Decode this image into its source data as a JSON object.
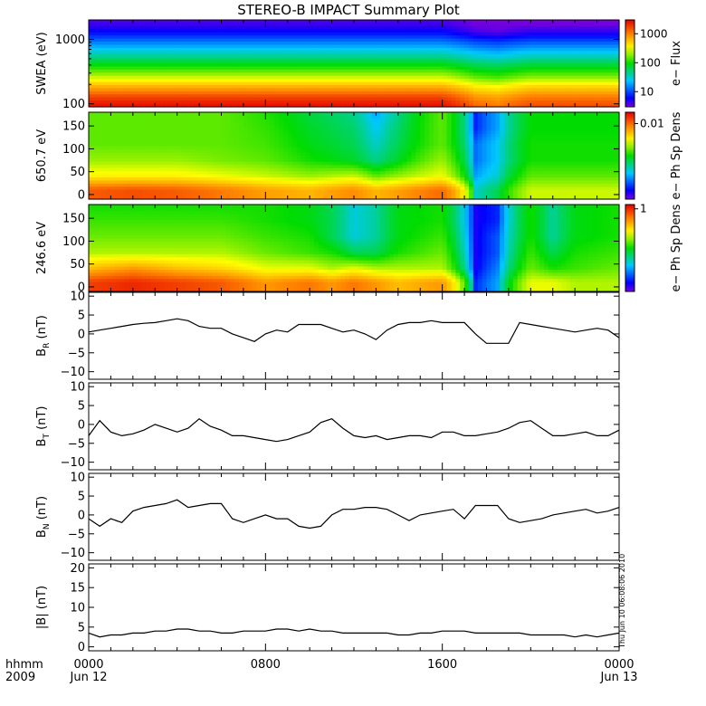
{
  "title": "STEREO-B IMPACT Summary Plot",
  "time_axis": {
    "row_label_1": "hhmm",
    "row_label_2": "2009",
    "ticks": [
      {
        "hour": 0,
        "label": "0000",
        "date": "Jun 12"
      },
      {
        "hour": 8,
        "label": "0800",
        "date": ""
      },
      {
        "hour": 16,
        "label": "1600",
        "date": ""
      },
      {
        "hour": 24,
        "label": "0000",
        "date": "Jun 13"
      }
    ]
  },
  "timestamp": "Thu Jun 10 06:08:06 2010",
  "colors": {
    "axis": "#000000",
    "trace": "#000000"
  },
  "chart_data": [
    {
      "type": "heatmap",
      "ylabel": "SWEA (eV)",
      "y_scale": "log",
      "ylim": [
        90,
        2000
      ],
      "yticks": [
        {
          "v": 100,
          "label": "100"
        },
        {
          "v": 1000,
          "label": "1000"
        }
      ],
      "colorbar": {
        "label": "e− Flux",
        "scale": "log",
        "range": [
          3,
          3000
        ],
        "ticks": [
          {
            "v": 10,
            "label": "10"
          },
          {
            "v": 100,
            "label": "100"
          },
          {
            "v": 1000,
            "label": "1000"
          }
        ]
      },
      "x": [
        0,
        2,
        4,
        6,
        8,
        10,
        12,
        14,
        16,
        17.5,
        18.5,
        20,
        22,
        24
      ],
      "y": [
        100,
        130,
        180,
        260,
        400,
        600,
        900,
        1300,
        1800
      ],
      "z": [
        [
          2500,
          2500,
          2500,
          2500,
          2500,
          2500,
          2500,
          2500,
          2500,
          1200,
          1000,
          1500,
          1500,
          1500
        ],
        [
          1600,
          1600,
          1600,
          1600,
          1600,
          1600,
          1600,
          1600,
          1600,
          800,
          700,
          1000,
          1000,
          1000
        ],
        [
          700,
          700,
          700,
          700,
          700,
          700,
          700,
          700,
          700,
          400,
          350,
          500,
          500,
          500
        ],
        [
          250,
          250,
          250,
          250,
          250,
          250,
          250,
          250,
          250,
          150,
          130,
          180,
          180,
          180
        ],
        [
          90,
          90,
          90,
          90,
          90,
          90,
          90,
          90,
          90,
          60,
          55,
          70,
          70,
          70
        ],
        [
          35,
          35,
          35,
          35,
          35,
          35,
          35,
          35,
          35,
          25,
          22,
          28,
          28,
          28
        ],
        [
          14,
          14,
          14,
          14,
          14,
          14,
          14,
          14,
          14,
          10,
          9,
          11,
          11,
          11
        ],
        [
          6,
          6,
          6,
          6,
          6,
          6,
          6,
          6,
          6,
          4,
          3.5,
          4.5,
          4.5,
          4.5
        ],
        [
          4,
          4,
          4,
          4,
          4,
          4,
          4,
          4,
          4,
          3,
          3,
          3,
          3,
          3
        ]
      ]
    },
    {
      "type": "heatmap",
      "ylabel": "650.7 eV",
      "ylim": [
        -10,
        180
      ],
      "yticks": [
        {
          "v": 0,
          "label": "0"
        },
        {
          "v": 50,
          "label": "50"
        },
        {
          "v": 100,
          "label": "100"
        },
        {
          "v": 150,
          "label": "150"
        }
      ],
      "colorbar": {
        "label": "e− Ph Sp Dens",
        "scale": "log",
        "range": [
          0.0001,
          0.02
        ],
        "ticks": [
          {
            "v": 0.01,
            "label": "0.01"
          }
        ]
      },
      "x": [
        0,
        2,
        4,
        6,
        8,
        10,
        12,
        13,
        14,
        16,
        17.5,
        18.5,
        20,
        22,
        24
      ],
      "y": [
        10,
        40,
        75,
        110,
        145,
        175
      ],
      "z": [
        [
          0.011,
          0.012,
          0.011,
          0.009,
          0.007,
          0.006,
          0.008,
          0.006,
          0.007,
          0.01,
          0.0006,
          0.001,
          0.003,
          0.003,
          0.003
        ],
        [
          0.004,
          0.004,
          0.004,
          0.0035,
          0.003,
          0.0025,
          0.003,
          0.002,
          0.0025,
          0.0035,
          0.0004,
          0.0006,
          0.002,
          0.002,
          0.002
        ],
        [
          0.0025,
          0.0025,
          0.0025,
          0.0022,
          0.002,
          0.0015,
          0.0012,
          0.0008,
          0.0012,
          0.0025,
          0.0003,
          0.0005,
          0.0015,
          0.0015,
          0.0015
        ],
        [
          0.002,
          0.002,
          0.002,
          0.002,
          0.0018,
          0.0013,
          0.001,
          0.0006,
          0.001,
          0.002,
          0.0003,
          0.0005,
          0.0015,
          0.0015,
          0.0015
        ],
        [
          0.002,
          0.002,
          0.002,
          0.002,
          0.0017,
          0.0012,
          0.0009,
          0.0005,
          0.0009,
          0.002,
          0.0002,
          0.0004,
          0.0014,
          0.0014,
          0.0014
        ],
        [
          0.002,
          0.002,
          0.002,
          0.002,
          0.0016,
          0.0011,
          0.0008,
          0.0004,
          0.0008,
          0.002,
          0.0002,
          0.0004,
          0.0014,
          0.0014,
          0.0014
        ]
      ]
    },
    {
      "type": "heatmap",
      "ylabel": "246.6 eV",
      "ylim": [
        -10,
        180
      ],
      "yticks": [
        {
          "v": 0,
          "label": "0"
        },
        {
          "v": 50,
          "label": "50"
        },
        {
          "v": 100,
          "label": "100"
        },
        {
          "v": 150,
          "label": "150"
        }
      ],
      "colorbar": {
        "label": "e− Ph Sp Dens",
        "scale": "log",
        "range": [
          0.03,
          1.2
        ],
        "ticks": [
          {
            "v": 1,
            "label": "1"
          }
        ]
      },
      "x": [
        0,
        2,
        4,
        6,
        8,
        10,
        11,
        12,
        13,
        14,
        16,
        17.5,
        18.5,
        20,
        21,
        22,
        24
      ],
      "y": [
        10,
        40,
        75,
        110,
        145,
        175
      ],
      "z": [
        [
          0.9,
          1.0,
          0.9,
          0.8,
          0.6,
          0.7,
          0.6,
          0.7,
          0.6,
          0.5,
          0.6,
          0.05,
          0.08,
          0.35,
          0.35,
          0.3,
          0.3
        ],
        [
          0.5,
          0.6,
          0.5,
          0.45,
          0.35,
          0.35,
          0.3,
          0.35,
          0.3,
          0.3,
          0.3,
          0.04,
          0.07,
          0.25,
          0.2,
          0.22,
          0.25
        ],
        [
          0.3,
          0.3,
          0.3,
          0.3,
          0.25,
          0.22,
          0.2,
          0.15,
          0.15,
          0.2,
          0.25,
          0.04,
          0.06,
          0.22,
          0.15,
          0.2,
          0.22
        ],
        [
          0.25,
          0.25,
          0.25,
          0.25,
          0.22,
          0.2,
          0.15,
          0.1,
          0.12,
          0.18,
          0.22,
          0.04,
          0.06,
          0.2,
          0.12,
          0.18,
          0.2
        ],
        [
          0.22,
          0.22,
          0.22,
          0.22,
          0.2,
          0.18,
          0.15,
          0.1,
          0.12,
          0.18,
          0.2,
          0.04,
          0.05,
          0.2,
          0.12,
          0.18,
          0.2
        ],
        [
          0.2,
          0.2,
          0.2,
          0.2,
          0.2,
          0.18,
          0.15,
          0.1,
          0.12,
          0.18,
          0.2,
          0.04,
          0.05,
          0.2,
          0.12,
          0.18,
          0.2
        ]
      ]
    },
    {
      "type": "line",
      "ylabel_main": "B",
      "ylabel_sub": "R",
      "ylabel_unit": " (nT)",
      "ylim": [
        -12,
        11
      ],
      "yticks": [
        {
          "v": -10,
          "label": "−10"
        },
        {
          "v": -5,
          "label": "−5"
        },
        {
          "v": 0,
          "label": "0"
        },
        {
          "v": 5,
          "label": "5"
        },
        {
          "v": 10,
          "label": "10"
        }
      ],
      "x": [
        0,
        0.5,
        1,
        1.5,
        2,
        2.5,
        3,
        3.5,
        4,
        4.5,
        5,
        5.5,
        6,
        6.5,
        7,
        7.5,
        8,
        8.5,
        9,
        9.5,
        10,
        10.5,
        11,
        11.5,
        12,
        12.5,
        13,
        13.5,
        14,
        14.5,
        15,
        15.5,
        16,
        16.5,
        17,
        17.5,
        18,
        18.5,
        19,
        19.5,
        20,
        20.5,
        21,
        21.5,
        22,
        22.5,
        23,
        23.5,
        24
      ],
      "y": [
        0.5,
        1,
        1.5,
        2,
        2.5,
        2.8,
        3,
        3.5,
        4,
        3.5,
        2,
        1.5,
        1.5,
        0,
        -1,
        -2,
        0,
        1,
        0.5,
        2.5,
        2.5,
        2.5,
        1.5,
        0.5,
        1,
        0,
        -1.5,
        1,
        2.5,
        3,
        3,
        3.5,
        3,
        3,
        3,
        0,
        -2.5,
        -2.5,
        -2.5,
        3,
        2.5,
        2,
        1.5,
        1,
        0.5,
        1,
        1.5,
        1,
        -1
      ]
    },
    {
      "type": "line",
      "ylabel_main": "B",
      "ylabel_sub": "T",
      "ylabel_unit": " (nT)",
      "ylim": [
        -12,
        11
      ],
      "yticks": [
        {
          "v": -10,
          "label": "−10"
        },
        {
          "v": -5,
          "label": "−5"
        },
        {
          "v": 0,
          "label": "0"
        },
        {
          "v": 5,
          "label": "5"
        },
        {
          "v": 10,
          "label": "10"
        }
      ],
      "x": [
        0,
        0.5,
        1,
        1.5,
        2,
        2.5,
        3,
        3.5,
        4,
        4.5,
        5,
        5.5,
        6,
        6.5,
        7,
        7.5,
        8,
        8.5,
        9,
        9.5,
        10,
        10.5,
        11,
        11.5,
        12,
        12.5,
        13,
        13.5,
        14,
        14.5,
        15,
        15.5,
        16,
        16.5,
        17,
        17.5,
        18,
        18.5,
        19,
        19.5,
        20,
        20.5,
        21,
        21.5,
        22,
        22.5,
        23,
        23.5,
        24
      ],
      "y": [
        -3,
        1,
        -2,
        -3,
        -2.5,
        -1.5,
        0,
        -1,
        -2,
        -1,
        1.5,
        -0.5,
        -1.5,
        -3,
        -3,
        -3.5,
        -4,
        -4.5,
        -4,
        -3,
        -2,
        0.5,
        1.5,
        -1,
        -3,
        -3.5,
        -3,
        -4,
        -3.5,
        -3,
        -3,
        -3.5,
        -2,
        -2,
        -3,
        -3,
        -2.5,
        -2,
        -1,
        0.5,
        1,
        -1,
        -3,
        -3,
        -2.5,
        -2,
        -3,
        -3,
        -1.5
      ]
    },
    {
      "type": "line",
      "ylabel_main": "B",
      "ylabel_sub": "N",
      "ylabel_unit": " (nT)",
      "ylim": [
        -12,
        11
      ],
      "yticks": [
        {
          "v": -10,
          "label": "−10"
        },
        {
          "v": -5,
          "label": "−5"
        },
        {
          "v": 0,
          "label": "0"
        },
        {
          "v": 5,
          "label": "5"
        },
        {
          "v": 10,
          "label": "10"
        }
      ],
      "x": [
        0,
        0.5,
        1,
        1.5,
        2,
        2.5,
        3,
        3.5,
        4,
        4.5,
        5,
        5.5,
        6,
        6.5,
        7,
        7.5,
        8,
        8.5,
        9,
        9.5,
        10,
        10.5,
        11,
        11.5,
        12,
        12.5,
        13,
        13.5,
        14,
        14.5,
        15,
        15.5,
        16,
        16.5,
        17,
        17.5,
        18,
        18.5,
        19,
        19.5,
        20,
        20.5,
        21,
        21.5,
        22,
        22.5,
        23,
        23.5,
        24
      ],
      "y": [
        -1,
        -3,
        -1,
        -2,
        1,
        2,
        2.5,
        3,
        4,
        2,
        2.5,
        3,
        3,
        -1,
        -2,
        -1,
        0,
        -1,
        -1,
        -3,
        -3.5,
        -3,
        0,
        1.5,
        1.5,
        2,
        2,
        1.5,
        0,
        -1.5,
        0,
        0.5,
        1,
        1.5,
        -1,
        2.5,
        2.5,
        2.5,
        -1,
        -2,
        -1.5,
        -1,
        0,
        0.5,
        1,
        1.5,
        0.5,
        1,
        2
      ]
    },
    {
      "type": "line",
      "ylabel_main": "|B|",
      "ylabel_sub": "",
      "ylabel_unit": " (nT)",
      "ylim": [
        -1,
        21
      ],
      "yticks": [
        {
          "v": 0,
          "label": "0"
        },
        {
          "v": 5,
          "label": "5"
        },
        {
          "v": 10,
          "label": "10"
        },
        {
          "v": 15,
          "label": "15"
        },
        {
          "v": 20,
          "label": "20"
        }
      ],
      "x": [
        0,
        0.5,
        1,
        1.5,
        2,
        2.5,
        3,
        3.5,
        4,
        4.5,
        5,
        5.5,
        6,
        6.5,
        7,
        7.5,
        8,
        8.5,
        9,
        9.5,
        10,
        10.5,
        11,
        11.5,
        12,
        12.5,
        13,
        13.5,
        14,
        14.5,
        15,
        15.5,
        16,
        16.5,
        17,
        17.5,
        18,
        18.5,
        19,
        19.5,
        20,
        20.5,
        21,
        21.5,
        22,
        22.5,
        23,
        23.5,
        24
      ],
      "y": [
        3.5,
        2.5,
        3,
        3,
        3.5,
        3.5,
        4,
        4,
        4.5,
        4.5,
        4,
        4,
        3.5,
        3.5,
        4,
        4,
        4,
        4.5,
        4.5,
        4,
        4.5,
        4,
        4,
        3.5,
        3.5,
        3.5,
        3.5,
        3.5,
        3,
        3,
        3.5,
        3.5,
        4,
        4,
        4,
        3.5,
        3.5,
        3.5,
        3.5,
        3.5,
        3,
        3,
        3,
        3,
        2.5,
        3,
        2.5,
        3,
        3.5
      ]
    }
  ]
}
